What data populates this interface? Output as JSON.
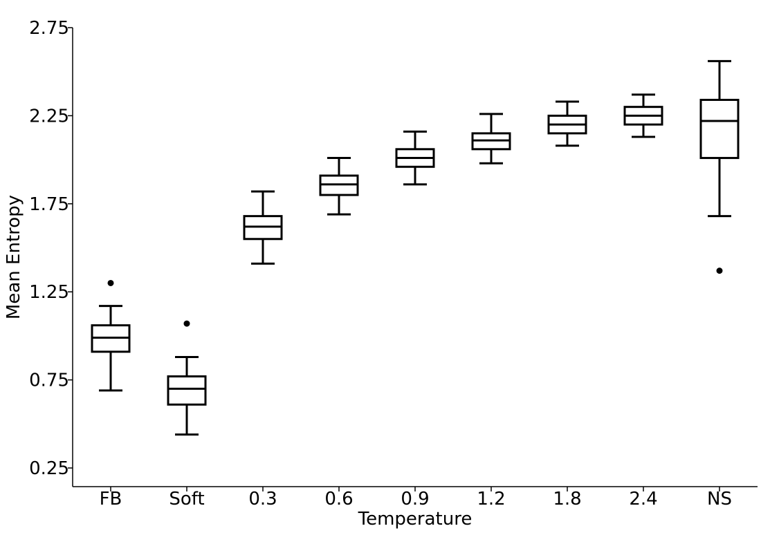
{
  "chart_data": {
    "type": "box",
    "xlabel": "Temperature",
    "ylabel": "Mean Entropy",
    "ylim": [
      0.15,
      2.75
    ],
    "yticks": [
      0.25,
      0.75,
      1.25,
      1.75,
      2.25,
      2.75
    ],
    "ytick_labels": [
      "0.25",
      "0.75",
      "1.25",
      "1.75",
      "2.25",
      "2.75"
    ],
    "categories": [
      "FB",
      "Soft",
      "0.3",
      "0.6",
      "0.9",
      "1.2",
      "1.8",
      "2.4",
      "NS"
    ],
    "boxes": [
      {
        "category": "FB",
        "whisker_low": 0.69,
        "q1": 0.91,
        "median": 0.99,
        "q3": 1.06,
        "whisker_high": 1.17,
        "fliers": [
          1.3
        ]
      },
      {
        "category": "Soft",
        "whisker_low": 0.44,
        "q1": 0.61,
        "median": 0.7,
        "q3": 0.77,
        "whisker_high": 0.88,
        "fliers": [
          1.07
        ]
      },
      {
        "category": "0.3",
        "whisker_low": 1.41,
        "q1": 1.55,
        "median": 1.62,
        "q3": 1.68,
        "whisker_high": 1.82,
        "fliers": []
      },
      {
        "category": "0.6",
        "whisker_low": 1.69,
        "q1": 1.8,
        "median": 1.86,
        "q3": 1.91,
        "whisker_high": 2.01,
        "fliers": []
      },
      {
        "category": "0.9",
        "whisker_low": 1.86,
        "q1": 1.96,
        "median": 2.01,
        "q3": 2.06,
        "whisker_high": 2.16,
        "fliers": []
      },
      {
        "category": "1.2",
        "whisker_low": 1.98,
        "q1": 2.06,
        "median": 2.11,
        "q3": 2.15,
        "whisker_high": 2.26,
        "fliers": []
      },
      {
        "category": "1.8",
        "whisker_low": 2.08,
        "q1": 2.15,
        "median": 2.2,
        "q3": 2.25,
        "whisker_high": 2.33,
        "fliers": []
      },
      {
        "category": "2.4",
        "whisker_low": 2.13,
        "q1": 2.2,
        "median": 2.25,
        "q3": 2.3,
        "whisker_high": 2.37,
        "fliers": []
      },
      {
        "category": "NS",
        "whisker_low": 1.68,
        "q1": 2.01,
        "median": 2.22,
        "q3": 2.34,
        "whisker_high": 2.56,
        "fliers": [
          1.37
        ]
      }
    ],
    "grid": false,
    "colors": {
      "box": "#000000",
      "background": "#ffffff"
    }
  }
}
